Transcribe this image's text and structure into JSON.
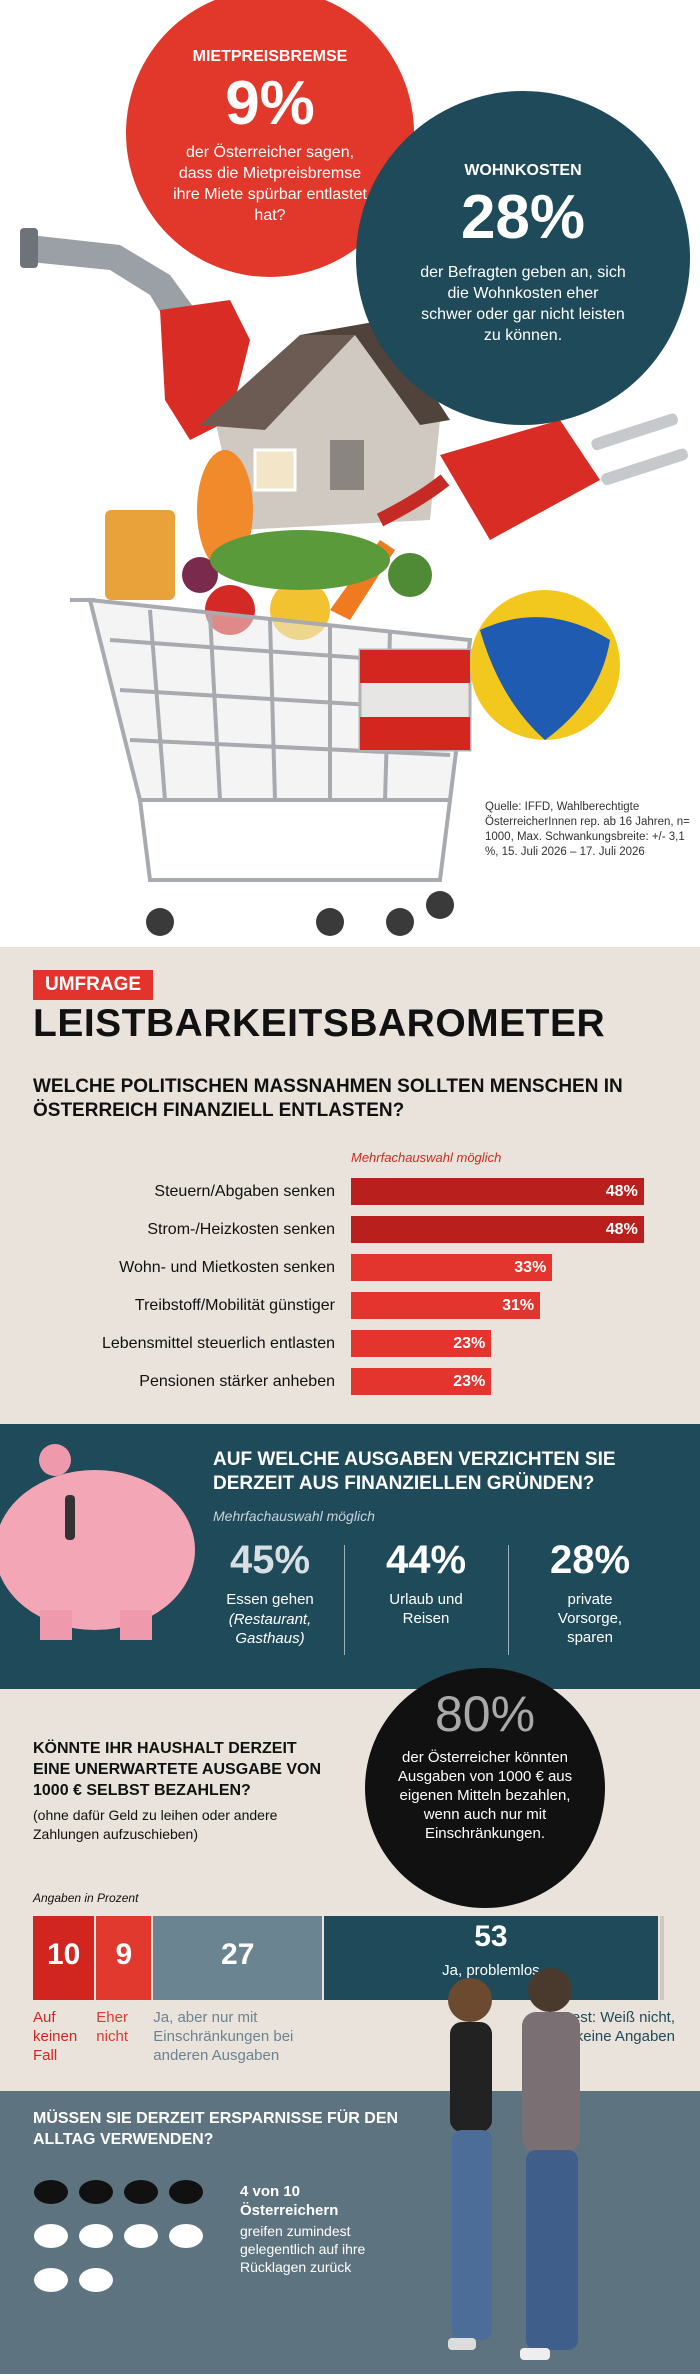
{
  "callouts": [
    {
      "label": "MIETPREISBREMSE",
      "value": "9%",
      "text": "der Österreicher sagen, dass die Mietpreisbremse ihre Miete spürbar entlastet hat?"
    },
    {
      "label": "WOHNKOSTEN",
      "value": "28%",
      "text": "der Befragten geben an, sich die Wohnkosten eher schwer oder gar nicht leisten zu können."
    }
  ],
  "source": "Quelle: IFFD, Wahlberechtigte ÖsterreicherInnen rep. ab 16 Jahren, n= 1000, Max. Schwankungsbreite: +/- 3,1 %, 15. Juli 2026 – 17. Juli 2026",
  "kicker": "UMFRAGE",
  "headline": "LEISTBARKEITSBAROMETER",
  "chart_data": [
    {
      "type": "bar",
      "title": "WELCHE POLITISCHEN MASSNAHMEN SOLLTEN MENSCHEN IN ÖSTERREICH FINANZIELL ENTLASTEN?",
      "subtitle": "Mehrfachauswahl möglich",
      "categories": [
        "Steuern/Abgaben senken",
        "Strom-/Heizkosten senken",
        "Wohn- und Mietkosten senken",
        "Treibstoff/Mobilität günstiger",
        "Lebensmittel steuerlich entlasten",
        "Pensionen stärker anheben"
      ],
      "values": [
        48,
        48,
        33,
        31,
        23,
        23
      ],
      "value_labels": [
        "48%",
        "48%",
        "33%",
        "31%",
        "23%",
        "23%"
      ],
      "colors": [
        "#b91f1d",
        "#b91f1d",
        "#e3342d",
        "#e3342d",
        "#e3342d",
        "#e3342d"
      ]
    },
    {
      "type": "stacked-bar",
      "title": "KÖNNTE IHR HAUSHALT DERZEIT EINE UNERWARTETE AUSGABE VON 1000 € SELBST BEZAHLEN?",
      "note": "(ohne dafür Geld zu leihen oder andere Zahlungen aufzuschieben)",
      "subtitle": "Angaben in Prozent",
      "series": [
        {
          "name": "Auf keinen Fall",
          "color": "#d0261f",
          "values": [
            10
          ]
        },
        {
          "name": "Eher nicht",
          "color": "#e2392f",
          "values": [
            9
          ]
        },
        {
          "name": "Ja, aber nur mit Einschränkungen bei anderen Ausgaben",
          "color": "#6a8491",
          "values": [
            27
          ]
        },
        {
          "name": "Ja, problemlos",
          "color": "#1f4a5a",
          "values": [
            53
          ]
        },
        {
          "name": "Rest: Weiß nicht, keine Angaben",
          "color": "#cfc8be",
          "values": [
            1
          ]
        }
      ]
    }
  ],
  "cuts": {
    "title": "AUF WELCHE AUSGABEN VERZICHTEN SIE DERZEIT AUS FINANZIELLEN GRÜNDEN?",
    "subtitle": "Mehrfachauswahl möglich",
    "items": [
      {
        "value": "45%",
        "label": "Essen gehen",
        "note": "(Restaurant, Gasthaus)"
      },
      {
        "value": "44%",
        "label": "Urlaub und Reisen"
      },
      {
        "value": "28%",
        "label": "private Vorsorge, sparen"
      }
    ]
  },
  "highlight": {
    "value": "80%",
    "text": "der Österreicher könnten Ausgaben von 1000 € aus eigenen Mitteln bezahlen, wenn auch nur mit Einschränkungen."
  },
  "savings": {
    "title": "MÜSSEN SIE DERZEIT ERSPARNISSE FÜR DEN ALLTAG VERWENDEN?",
    "lead": "4 von 10 Österreichern",
    "text": "greifen zumindest gelegentlich auf ihre Rücklagen zurück"
  }
}
